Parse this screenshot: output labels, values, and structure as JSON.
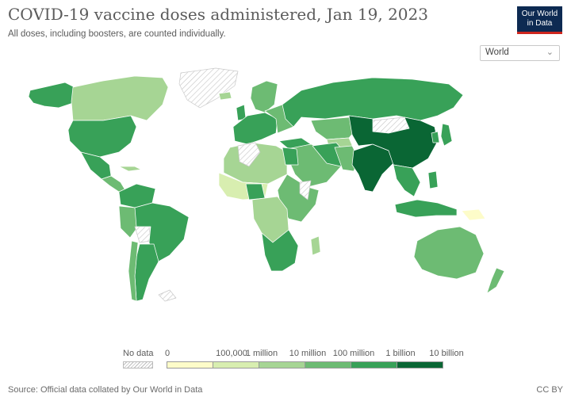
{
  "header": {
    "title": "COVID-19 vaccine doses administered, Jan 19, 2023",
    "subtitle": "All doses, including boosters, are counted individually."
  },
  "logo": {
    "line1": "Our World",
    "line2": "in Data"
  },
  "region_selector": {
    "value": "World",
    "icon": "chevron-down-icon"
  },
  "legend": {
    "no_data_label": "No data",
    "tick_labels": [
      "0",
      "100,000",
      "1 million",
      "10 million",
      "100 million",
      "1 billion",
      "10 billion"
    ],
    "bin_colors": [
      "#fdfcc9",
      "#d8eeb0",
      "#a6d594",
      "#6dbb73",
      "#38a158",
      "#0a6634"
    ]
  },
  "colors": {
    "no_data": "#e9e9e9",
    "border": "#ffffff",
    "ocean": "#ffffff"
  },
  "footer": {
    "source": "Source: Official data collated by Our World in Data",
    "license": "CC BY"
  }
}
